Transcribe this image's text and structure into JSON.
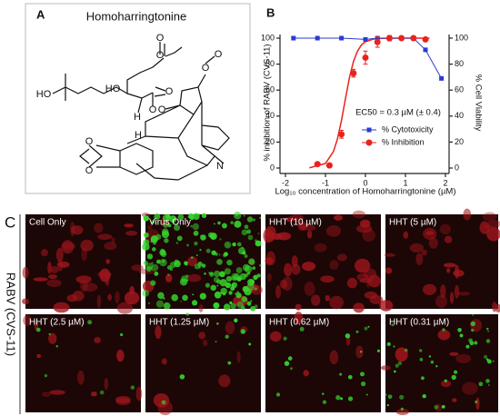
{
  "panel_a": {
    "label": "A",
    "title": "Homoharringtonine",
    "atoms": [
      "HO",
      "HO",
      "O",
      "O",
      "O",
      "O",
      "O",
      "O",
      "O",
      "H",
      "H",
      "O",
      "O",
      "N"
    ]
  },
  "chart_data": {
    "type": "scatter",
    "label": "B",
    "x_label": "Log₁₀ concentration of Homoharringtonine (µM)",
    "y_label": "% inhibition of RABV (CVS-11)",
    "y2_label": "% Cell Viability",
    "annotation": "EC50 = 0.3 µM (± 0.4)",
    "xlim": [
      -2,
      2
    ],
    "xticks": [
      -2,
      -1,
      0,
      1,
      2
    ],
    "ylim": [
      0,
      100
    ],
    "yticks": [
      0,
      20,
      40,
      60,
      80,
      100
    ],
    "y2lim": [
      0,
      100
    ],
    "y2ticks": [
      0,
      20,
      40,
      60,
      80,
      100
    ],
    "grid": false,
    "legend": "center right",
    "series": [
      {
        "name": "% Cytotoxicity",
        "color": "#2b3bd0",
        "marker": "square",
        "axis": "y2",
        "line": true,
        "x": [
          -1.8,
          -1.2,
          -0.6,
          0,
          0.3,
          0.6,
          0.9,
          1.2,
          1.5,
          1.9
        ],
        "values": [
          100,
          100,
          100,
          99,
          100,
          100,
          100,
          100,
          91,
          69
        ]
      },
      {
        "name": "% Inhibition",
        "color": "#e8231e",
        "marker": "circle",
        "line": false,
        "x": [
          -1.2,
          -0.9,
          -0.6,
          -0.3,
          0,
          0.3,
          0.6,
          0.9,
          1.2,
          1.5
        ],
        "values": [
          3,
          2,
          26,
          73,
          85,
          97,
          100,
          100,
          100,
          99
        ],
        "errors": [
          1,
          1,
          3,
          3,
          5,
          4,
          2,
          1,
          1,
          1
        ]
      }
    ],
    "fit_curve": {
      "color": "#e8231e",
      "x": [
        -1.4,
        -1.0,
        -0.8,
        -0.7,
        -0.6,
        -0.5,
        -0.4,
        -0.3,
        -0.2,
        -0.1,
        0,
        0.2,
        0.4,
        0.8,
        1.2,
        1.6
      ],
      "values": [
        0.2,
        3.5,
        12.7,
        22.4,
        36.5,
        53.4,
        69.6,
        82,
        90,
        94.8,
        97.3,
        99.3,
        99.8,
        100,
        100,
        100
      ]
    }
  },
  "panel_c": {
    "label": "C",
    "row_label": "RABV (CVS-11)",
    "tiles": [
      "Cell Only",
      "Virus Only",
      "HHT (10 µM)",
      "HHT (5 µM)",
      "HHT (2.5 µM)",
      "HHT (1.25 µM)",
      "HHT (0.62 µM)",
      "HHT (0.31 µM)"
    ]
  }
}
